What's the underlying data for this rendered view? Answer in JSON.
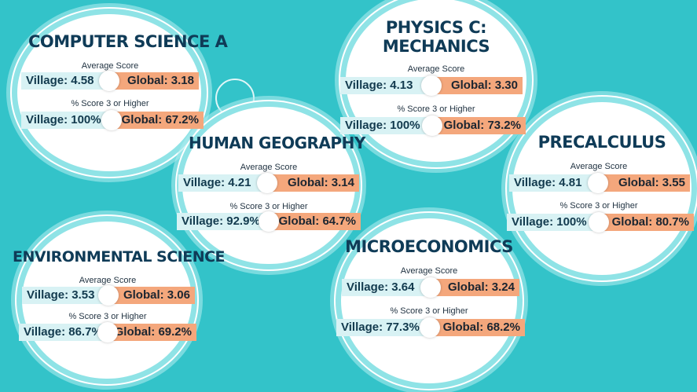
{
  "labels": {
    "avg": "Average Score",
    "pct": "% Score 3 or Higher"
  },
  "colors": {
    "background": "#33c3c9",
    "village": "#d8f2f4",
    "global": "#f4a77c",
    "title": "#0f3b57"
  },
  "subjects": [
    {
      "title": "COMPUTER SCIENCE A",
      "avg_village": "Village: 4.58",
      "avg_global": "Global: 3.18",
      "pct_village": "Village: 100%",
      "pct_global": "Global: 67.2%"
    },
    {
      "title_line1": "PHYSICS C:",
      "title_line2": "MECHANICS",
      "avg_village": "Village: 4.13",
      "avg_global": "Global: 3.30",
      "pct_village": "Village: 100%",
      "pct_global": "Global: 73.2%"
    },
    {
      "title": "HUMAN GEOGRAPHY",
      "avg_village": "Village: 4.21",
      "avg_global": "Global: 3.14",
      "pct_village": "Village: 92.9%",
      "pct_global": "Global: 64.7%"
    },
    {
      "title": "PRECALCULUS",
      "avg_village": "Village: 4.81",
      "avg_global": "Global: 3.55",
      "pct_village": "Village: 100%",
      "pct_global": "Global: 80.7%"
    },
    {
      "title": "ENVIRONMENTAL SCIENCE",
      "avg_village": "Village: 3.53",
      "avg_global": "Global: 3.06",
      "pct_village": "Village: 86.7%",
      "pct_global": "Global: 69.2%"
    },
    {
      "title": "MICROECONOMICS",
      "avg_village": "Village: 3.64",
      "avg_global": "Global: 3.24",
      "pct_village": "Village: 77.3%",
      "pct_global": "Global: 68.2%"
    }
  ]
}
